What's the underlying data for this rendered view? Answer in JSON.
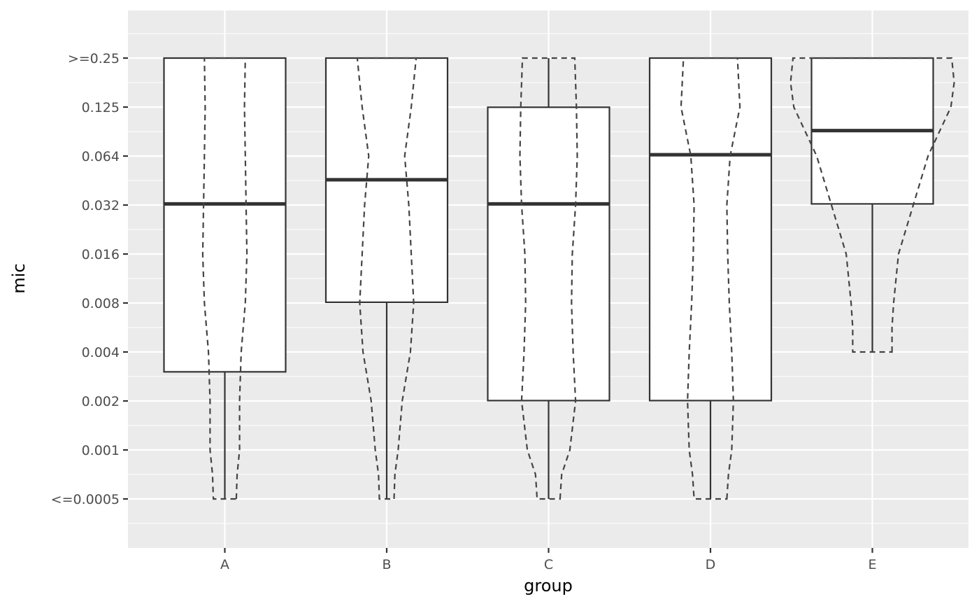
{
  "chart_data": {
    "type": "boxplot",
    "xlabel": "group",
    "ylabel": "mic",
    "y_scale": "log2",
    "y_ticks": [
      ">=0.25",
      "0.125",
      "0.064",
      "0.032",
      "0.016",
      "0.008",
      "0.004",
      "0.002",
      "0.001",
      "<=0.0005"
    ],
    "categories": [
      "A",
      "B",
      "C",
      "D",
      "E"
    ],
    "boxes": [
      {
        "group": "A",
        "lower": "<=0.0005",
        "q1": 0.003,
        "median": 0.032,
        "q3": ">=0.25",
        "upper": ">=0.25"
      },
      {
        "group": "B",
        "lower": "<=0.0005",
        "q1": 0.008,
        "median": 0.045,
        "q3": ">=0.25",
        "upper": ">=0.25"
      },
      {
        "group": "C",
        "lower": "<=0.0005",
        "q1": 0.002,
        "median": 0.032,
        "q3": 0.125,
        "upper": ">=0.25"
      },
      {
        "group": "D",
        "lower": "<=0.0005",
        "q1": 0.002,
        "median": 0.064,
        "q3": ">=0.25",
        "upper": ">=0.25"
      },
      {
        "group": "E",
        "lower": 0.004,
        "q1": 0.032,
        "median": 0.09,
        "q3": ">=0.25",
        "upper": ">=0.25"
      }
    ],
    "violins": [
      {
        "group": "A",
        "outline_style": "dashed",
        "profile": [
          [
            0,
            0.14
          ],
          [
            0.5,
            0.15
          ],
          [
            1,
            0.18
          ],
          [
            2,
            0.18
          ],
          [
            3,
            0.2
          ],
          [
            4,
            0.25
          ],
          [
            5,
            0.27
          ],
          [
            6,
            0.26
          ],
          [
            7,
            0.25
          ],
          [
            8,
            0.24
          ],
          [
            9,
            0.25
          ]
        ]
      },
      {
        "group": "B",
        "outline_style": "dashed",
        "profile": [
          [
            0,
            0.09
          ],
          [
            0.5,
            0.1
          ],
          [
            1,
            0.14
          ],
          [
            2,
            0.19
          ],
          [
            3,
            0.29
          ],
          [
            4,
            0.33
          ],
          [
            5,
            0.3
          ],
          [
            6,
            0.27
          ],
          [
            7,
            0.22
          ],
          [
            8,
            0.3
          ],
          [
            9,
            0.36
          ]
        ]
      },
      {
        "group": "C",
        "outline_style": "dashed",
        "profile": [
          [
            0,
            0.14
          ],
          [
            0.5,
            0.16
          ],
          [
            1,
            0.26
          ],
          [
            2,
            0.33
          ],
          [
            3,
            0.3
          ],
          [
            4,
            0.28
          ],
          [
            5,
            0.29
          ],
          [
            6,
            0.33
          ],
          [
            7,
            0.35
          ],
          [
            8,
            0.34
          ],
          [
            9,
            0.32
          ]
        ]
      },
      {
        "group": "D",
        "outline_style": "dashed",
        "profile": [
          [
            0,
            0.2
          ],
          [
            0.5,
            0.22
          ],
          [
            1,
            0.26
          ],
          [
            2,
            0.28
          ],
          [
            3,
            0.26
          ],
          [
            4,
            0.23
          ],
          [
            5,
            0.21
          ],
          [
            6,
            0.2
          ],
          [
            7,
            0.24
          ],
          [
            8,
            0.36
          ],
          [
            9,
            0.33
          ]
        ]
      },
      {
        "group": "E",
        "outline_style": "dashed",
        "profile": [
          [
            3,
            0.24
          ],
          [
            3.5,
            0.24
          ],
          [
            4,
            0.26
          ],
          [
            5,
            0.32
          ],
          [
            6,
            0.5
          ],
          [
            7,
            0.68
          ],
          [
            8,
            0.96
          ],
          [
            8.5,
            1.0
          ],
          [
            9,
            0.97
          ]
        ]
      }
    ],
    "grid": true,
    "legend": "none",
    "colors": {
      "panel_background": "#ebebeb",
      "grid_line": "#ffffff",
      "box_fill": "#ffffff",
      "box_stroke": "#333333",
      "violin_stroke": "#444444",
      "tick_text": "#4d4d4d",
      "title_text": "#000000"
    }
  }
}
